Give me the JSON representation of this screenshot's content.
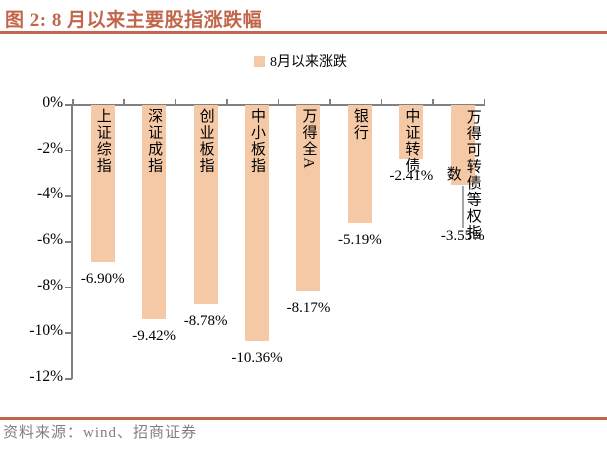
{
  "figure": {
    "title": "图 2: 8 月以来主要股指涨跌幅",
    "source": "资料来源：wind、招商证券"
  },
  "legend": {
    "label": "8月以来涨跌"
  },
  "chart_data": {
    "type": "bar",
    "title": "8月以来涨跌",
    "series": [
      {
        "name": "8月以来涨跌",
        "values": [
          -6.9,
          -9.42,
          -8.78,
          -10.36,
          -8.17,
          -5.19,
          -2.41,
          -3.55
        ]
      }
    ],
    "categories": [
      "上证综指",
      "深证成指",
      "创业板指",
      "中小板指",
      "万得全A",
      "银行",
      "中证转债",
      "万得可转债等权指数"
    ],
    "data_labels": [
      "-6.90%",
      "-9.42%",
      "-8.78%",
      "-10.36%",
      "-8.17%",
      "-5.19%",
      "-2.41%",
      "-3.55%"
    ],
    "ytick_labels": [
      "0%",
      "-2%",
      "-4%",
      "-6%",
      "-8%",
      "-10%",
      "-12%"
    ],
    "ylim": [
      -12,
      0
    ],
    "grid": false,
    "legend_position": "top-center",
    "category_label_position": "inside-top-vertical",
    "xlabel": "",
    "ylabel": ""
  },
  "colors": {
    "accent_rule": "#c1664b",
    "title_text": "#c1664b",
    "bar_fill": "#f5c9a6",
    "axis_line": "#808080",
    "label_text": "#000000",
    "leader_line": "#a6a6a6",
    "source_text": "#808080"
  }
}
